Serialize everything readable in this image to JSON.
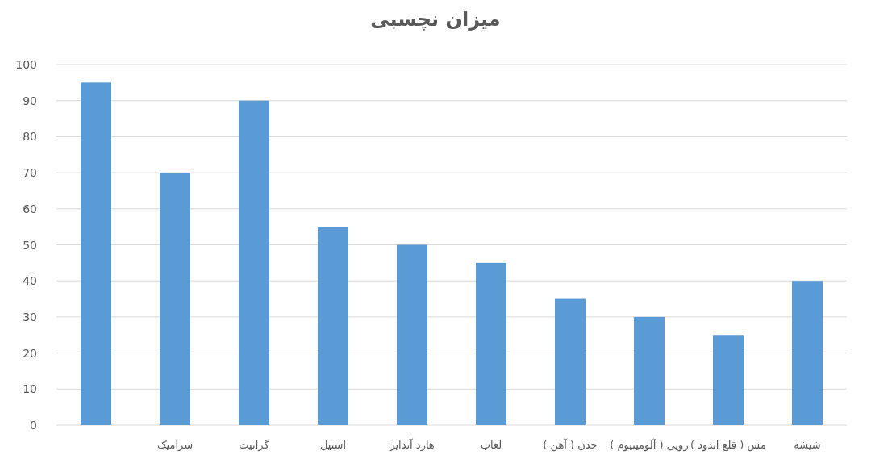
{
  "chart_data": {
    "type": "bar",
    "title": "میزان نچسبی",
    "categories": [
      null,
      "سرامیک",
      "گرانیت",
      "استیل",
      "هارد آندایز",
      "لعاب",
      "چدن ( آهن )",
      "رویی ( آلومینیوم )",
      "مس ( قلع اندود )",
      "شیشه"
    ],
    "values": [
      95,
      70,
      90,
      55,
      50,
      45,
      35,
      30,
      25,
      40
    ],
    "color": "#5b9bd5",
    "ylim": [
      0,
      100
    ],
    "yticks": [
      0,
      10,
      20,
      30,
      40,
      50,
      60,
      70,
      80,
      90,
      100
    ],
    "grid": "y"
  }
}
